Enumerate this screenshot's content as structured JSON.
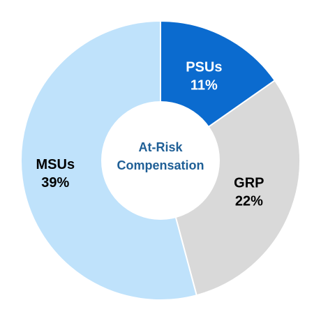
{
  "chart_data": {
    "type": "donut",
    "center_label": [
      "At-Risk",
      "Compensation"
    ],
    "categories": [
      "PSUs",
      "GRP",
      "MSUs"
    ],
    "values": [
      11,
      22,
      39
    ],
    "value_labels": [
      "11%",
      "22%",
      "39%"
    ],
    "colors": [
      "#0b6bcf",
      "#d9d9d9",
      "#bfe2fb"
    ],
    "label_colors": [
      "#ffffff",
      "#000000",
      "#000000"
    ]
  }
}
